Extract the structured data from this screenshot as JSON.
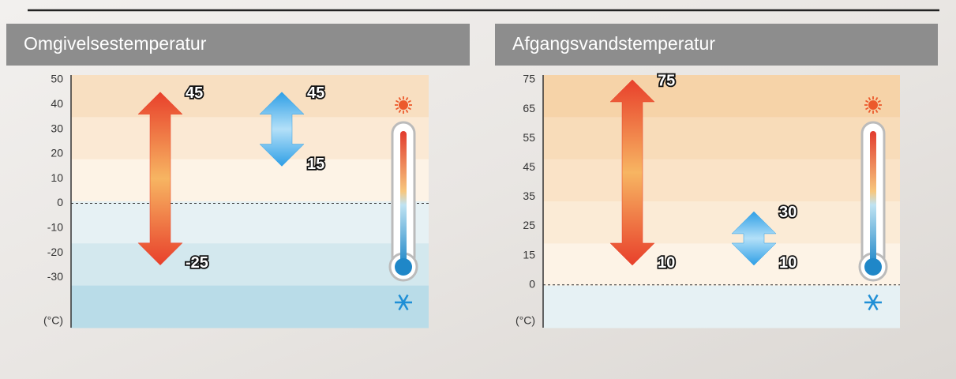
{
  "chart_data": [
    {
      "type": "range",
      "title": "Omgivelsestemperatur",
      "unit_label": "(°C)",
      "yticks": [
        50,
        40,
        30,
        20,
        10,
        0,
        -10,
        -20,
        -30
      ],
      "zero_line": true,
      "ranges": [
        {
          "color": "#e8402b",
          "values": [
            -25,
            45
          ]
        },
        {
          "color": "#2f9fe6",
          "values": [
            15,
            45
          ]
        }
      ]
    },
    {
      "type": "range",
      "title": "Afgangsvandstemperatur",
      "unit_label": "(°C)",
      "yticks": [
        75,
        65,
        55,
        45,
        35,
        25,
        15,
        0
      ],
      "zero_line": true,
      "ranges": [
        {
          "color": "#e8402b",
          "values": [
            10,
            75
          ]
        },
        {
          "color": "#2f9fe6",
          "values": [
            10,
            30
          ]
        }
      ]
    }
  ]
}
